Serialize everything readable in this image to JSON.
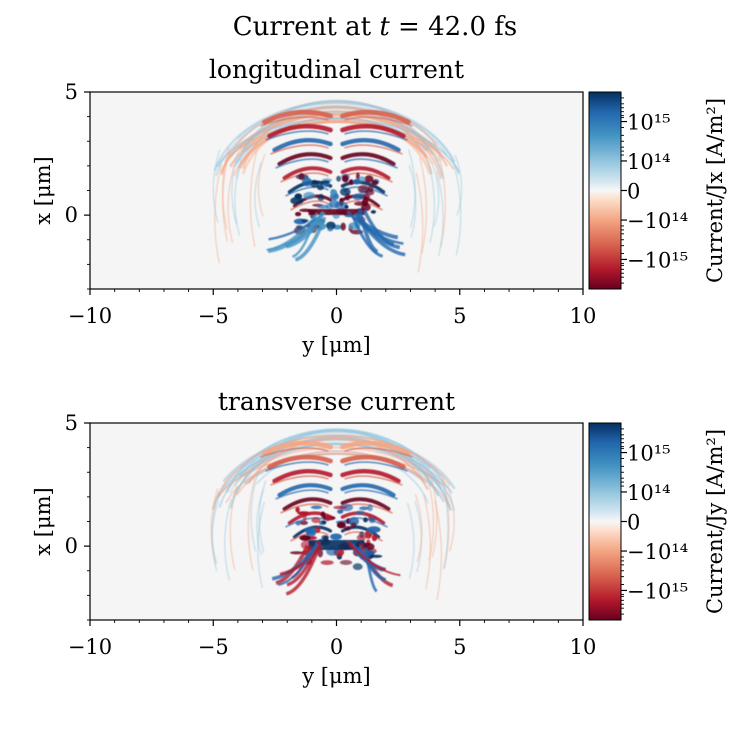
{
  "figure": {
    "suptitle_prefix": "Current at ",
    "suptitle_var": "t",
    "suptitle_suffix": " = 42.0 fs"
  },
  "chart_data": [
    {
      "type": "heatmap",
      "title": "longitudinal current",
      "xlabel": "y [μm]",
      "ylabel": "x [μm]",
      "xlim": [
        -10,
        10
      ],
      "ylim": [
        -3,
        5
      ],
      "xticks": [
        "−10",
        "−5",
        "0",
        "5",
        "10"
      ],
      "xtick_values": [
        -10,
        -5,
        0,
        5,
        10
      ],
      "yticks": [
        "0",
        "5"
      ],
      "ytick_values": [
        0,
        5
      ],
      "colorbar": {
        "label": "Current/Jx [A/m²]",
        "scale": "symlog",
        "range": [
          -5000000000000000.0,
          5000000000000000.0
        ],
        "ticks": [
          "10¹⁵",
          "10¹⁴",
          "0",
          "−10¹⁴",
          "−10¹⁵"
        ],
        "colormap": "RdBu",
        "color_high": "#053061",
        "color_mid": "#f7f7f7",
        "color_low": "#67001f"
      },
      "grid": false
    },
    {
      "type": "heatmap",
      "title": "transverse current",
      "xlabel": "y [μm]",
      "ylabel": "x [μm]",
      "xlim": [
        -10,
        10
      ],
      "ylim": [
        -3,
        5
      ],
      "xticks": [
        "−10",
        "−5",
        "0",
        "5",
        "10"
      ],
      "xtick_values": [
        -10,
        -5,
        0,
        5,
        10
      ],
      "yticks": [
        "0",
        "5"
      ],
      "ytick_values": [
        0,
        5
      ],
      "colorbar": {
        "label": "Current/Jy [A/m²]",
        "scale": "symlog",
        "range": [
          -5000000000000000.0,
          5000000000000000.0
        ],
        "ticks": [
          "10¹⁵",
          "10¹⁴",
          "0",
          "−10¹⁴",
          "−10¹⁵"
        ],
        "colormap": "RdBu",
        "color_high": "#053061",
        "color_mid": "#f7f7f7",
        "color_low": "#67001f"
      },
      "grid": false
    }
  ]
}
